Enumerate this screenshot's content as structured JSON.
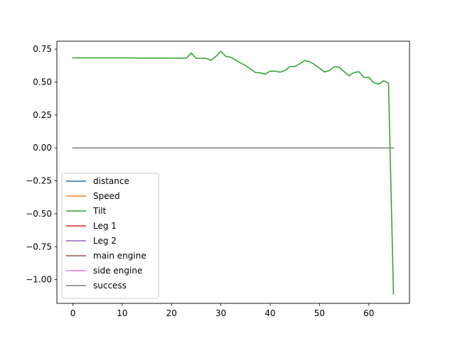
{
  "chart_data": {
    "type": "line",
    "title": "",
    "xlabel": "",
    "ylabel": "",
    "xlim": [
      -3.25,
      68.25
    ],
    "ylim": [
      -1.18,
      0.81
    ],
    "grid": false,
    "legend_position": "lower-left",
    "x_ticks": [
      0,
      10,
      20,
      30,
      40,
      50,
      60
    ],
    "x_tick_labels": [
      "0",
      "10",
      "20",
      "30",
      "40",
      "50",
      "60"
    ],
    "y_ticks": [
      0.75,
      0.5,
      0.25,
      0.0,
      -0.25,
      -0.5,
      -0.75,
      -1.0
    ],
    "y_tick_labels": [
      "0.75",
      "0.50",
      "0.25",
      "0.00",
      "−0.25",
      "−0.50",
      "−0.75",
      "−1.00"
    ],
    "x": [
      0,
      1,
      2,
      3,
      4,
      5,
      6,
      7,
      8,
      9,
      10,
      11,
      12,
      13,
      14,
      15,
      16,
      17,
      18,
      19,
      20,
      21,
      22,
      23,
      24,
      25,
      26,
      27,
      28,
      29,
      30,
      31,
      32,
      33,
      34,
      35,
      36,
      37,
      38,
      39,
      40,
      41,
      42,
      43,
      44,
      45,
      46,
      47,
      48,
      49,
      50,
      51,
      52,
      53,
      54,
      55,
      56,
      57,
      58,
      59,
      60,
      61,
      62,
      63,
      64,
      65
    ],
    "series": [
      {
        "name": "distance",
        "color": "#1f77b4",
        "values": [
          0,
          0,
          0,
          0,
          0,
          0,
          0,
          0,
          0,
          0,
          0,
          0,
          0,
          0,
          0,
          0,
          0,
          0,
          0,
          0,
          0,
          0,
          0,
          0,
          0,
          0,
          0,
          0,
          0,
          0,
          0,
          0,
          0,
          0,
          0,
          0,
          0,
          0,
          0,
          0,
          0,
          0,
          0,
          0,
          0,
          0,
          0,
          0,
          0,
          0,
          0,
          0,
          0,
          0,
          0,
          0,
          0,
          0,
          0,
          0,
          0,
          0,
          0,
          0,
          0,
          0
        ]
      },
      {
        "name": "Speed",
        "color": "#ff7f0e",
        "values": [
          0,
          0,
          0,
          0,
          0,
          0,
          0,
          0,
          0,
          0,
          0,
          0,
          0,
          0,
          0,
          0,
          0,
          0,
          0,
          0,
          0,
          0,
          0,
          0,
          0,
          0,
          0,
          0,
          0,
          0,
          0,
          0,
          0,
          0,
          0,
          0,
          0,
          0,
          0,
          0,
          0,
          0,
          0,
          0,
          0,
          0,
          0,
          0,
          0,
          0,
          0,
          0,
          0,
          0,
          0,
          0,
          0,
          0,
          0,
          0,
          0,
          0,
          0,
          0,
          0,
          0
        ]
      },
      {
        "name": "Tilt",
        "color": "#2ca02c",
        "values": [
          0.683,
          0.683,
          0.683,
          0.683,
          0.683,
          0.683,
          0.683,
          0.683,
          0.683,
          0.683,
          0.683,
          0.683,
          0.683,
          0.682,
          0.682,
          0.682,
          0.682,
          0.682,
          0.682,
          0.682,
          0.682,
          0.681,
          0.681,
          0.681,
          0.72,
          0.68,
          0.681,
          0.681,
          0.665,
          0.695,
          0.733,
          0.695,
          0.688,
          0.668,
          0.645,
          0.625,
          0.6,
          0.572,
          0.57,
          0.56,
          0.583,
          0.582,
          0.575,
          0.588,
          0.618,
          0.618,
          0.638,
          0.663,
          0.655,
          0.632,
          0.605,
          0.576,
          0.587,
          0.617,
          0.612,
          0.578,
          0.548,
          0.573,
          0.578,
          0.535,
          0.536,
          0.495,
          0.484,
          0.51,
          0.49,
          -1.11
        ]
      },
      {
        "name": "Leg 1",
        "color": "#d62728",
        "values": [
          0,
          0,
          0,
          0,
          0,
          0,
          0,
          0,
          0,
          0,
          0,
          0,
          0,
          0,
          0,
          0,
          0,
          0,
          0,
          0,
          0,
          0,
          0,
          0,
          0,
          0,
          0,
          0,
          0,
          0,
          0,
          0,
          0,
          0,
          0,
          0,
          0,
          0,
          0,
          0,
          0,
          0,
          0,
          0,
          0,
          0,
          0,
          0,
          0,
          0,
          0,
          0,
          0,
          0,
          0,
          0,
          0,
          0,
          0,
          0,
          0,
          0,
          0,
          0,
          0,
          0
        ]
      },
      {
        "name": "Leg 2",
        "color": "#9467bd",
        "values": [
          0,
          0,
          0,
          0,
          0,
          0,
          0,
          0,
          0,
          0,
          0,
          0,
          0,
          0,
          0,
          0,
          0,
          0,
          0,
          0,
          0,
          0,
          0,
          0,
          0,
          0,
          0,
          0,
          0,
          0,
          0,
          0,
          0,
          0,
          0,
          0,
          0,
          0,
          0,
          0,
          0,
          0,
          0,
          0,
          0,
          0,
          0,
          0,
          0,
          0,
          0,
          0,
          0,
          0,
          0,
          0,
          0,
          0,
          0,
          0,
          0,
          0,
          0,
          0,
          0,
          0
        ]
      },
      {
        "name": "main engine",
        "color": "#8c564b",
        "values": [
          0,
          0,
          0,
          0,
          0,
          0,
          0,
          0,
          0,
          0,
          0,
          0,
          0,
          0,
          0,
          0,
          0,
          0,
          0,
          0,
          0,
          0,
          0,
          0,
          0,
          0,
          0,
          0,
          0,
          0,
          0,
          0,
          0,
          0,
          0,
          0,
          0,
          0,
          0,
          0,
          0,
          0,
          0,
          0,
          0,
          0,
          0,
          0,
          0,
          0,
          0,
          0,
          0,
          0,
          0,
          0,
          0,
          0,
          0,
          0,
          0,
          0,
          0,
          0,
          0,
          0
        ]
      },
      {
        "name": "side engine",
        "color": "#e377c2",
        "values": [
          0,
          0,
          0,
          0,
          0,
          0,
          0,
          0,
          0,
          0,
          0,
          0,
          0,
          0,
          0,
          0,
          0,
          0,
          0,
          0,
          0,
          0,
          0,
          0,
          0,
          0,
          0,
          0,
          0,
          0,
          0,
          0,
          0,
          0,
          0,
          0,
          0,
          0,
          0,
          0,
          0,
          0,
          0,
          0,
          0,
          0,
          0,
          0,
          0,
          0,
          0,
          0,
          0,
          0,
          0,
          0,
          0,
          0,
          0,
          0,
          0,
          0,
          0,
          0,
          0,
          0
        ]
      },
      {
        "name": "success",
        "color": "#7f7f7f",
        "values": [
          0,
          0,
          0,
          0,
          0,
          0,
          0,
          0,
          0,
          0,
          0,
          0,
          0,
          0,
          0,
          0,
          0,
          0,
          0,
          0,
          0,
          0,
          0,
          0,
          0,
          0,
          0,
          0,
          0,
          0,
          0,
          0,
          0,
          0,
          0,
          0,
          0,
          0,
          0,
          0,
          0,
          0,
          0,
          0,
          0,
          0,
          0,
          0,
          0,
          0,
          0,
          0,
          0,
          0,
          0,
          0,
          0,
          0,
          0,
          0,
          0,
          0,
          0,
          0,
          0,
          0
        ]
      }
    ]
  }
}
